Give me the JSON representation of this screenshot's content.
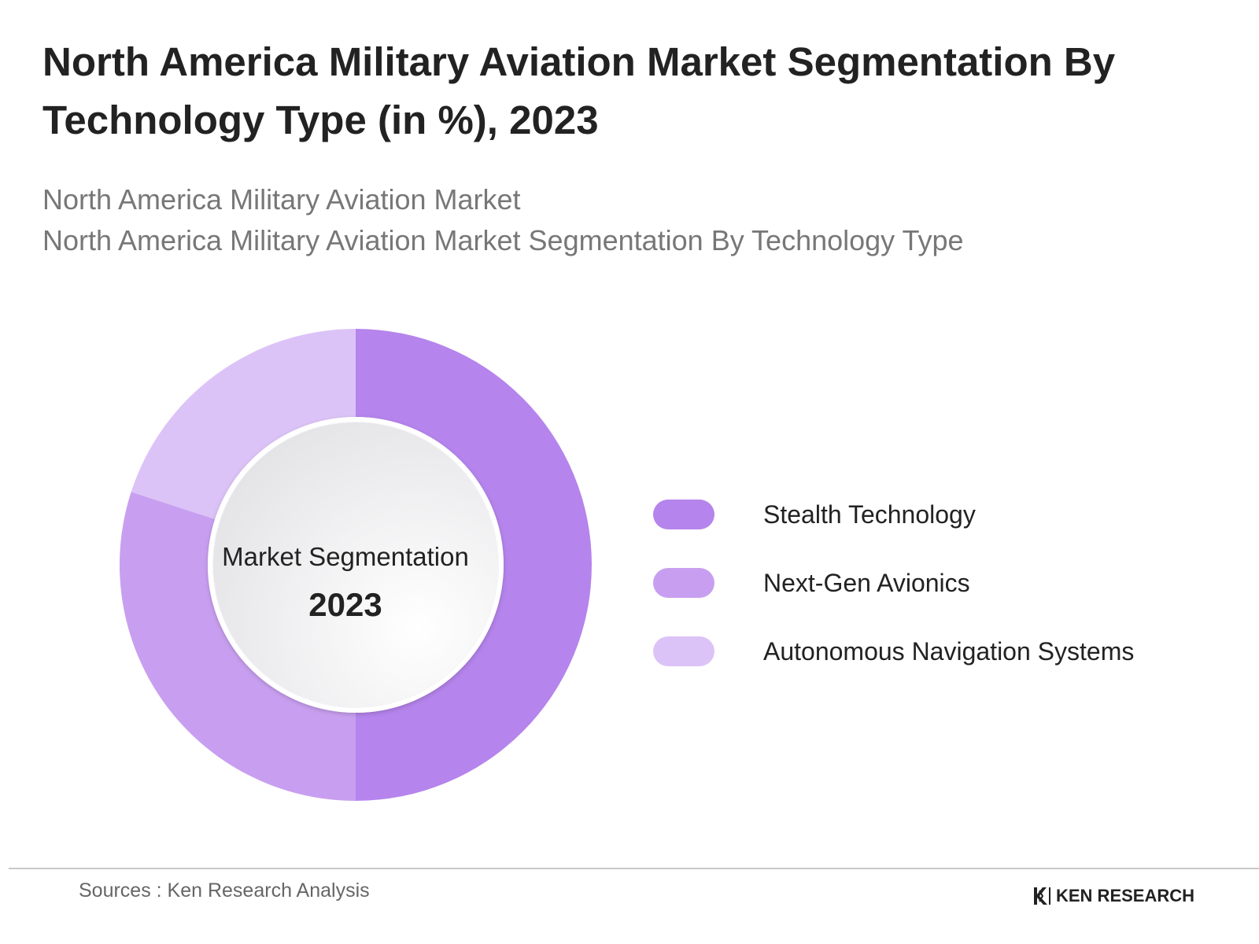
{
  "title": "North America Military Aviation Market Segmentation By Technology Type (in %), 2023",
  "subtitle": {
    "line1": "North America Military Aviation Market",
    "line2": "North America Military Aviation Market Segmentation By Technology Type"
  },
  "center": {
    "label": "Market Segmentation",
    "year": "2023"
  },
  "chart_data": {
    "type": "pie",
    "donut": true,
    "title": "North America Military Aviation Market Segmentation By Technology Type (in %), 2023",
    "categories": [
      "Stealth Technology",
      "Next-Gen Avionics",
      "Autonomous Navigation Systems"
    ],
    "values": [
      50,
      30,
      20
    ],
    "colors": [
      "#b584ec",
      "#c89ff0",
      "#dcc3f7"
    ],
    "legend_position": "right"
  },
  "footer": {
    "source": "Sources : Ken Research Analysis",
    "logo_text": "KEN RESEARCH"
  }
}
